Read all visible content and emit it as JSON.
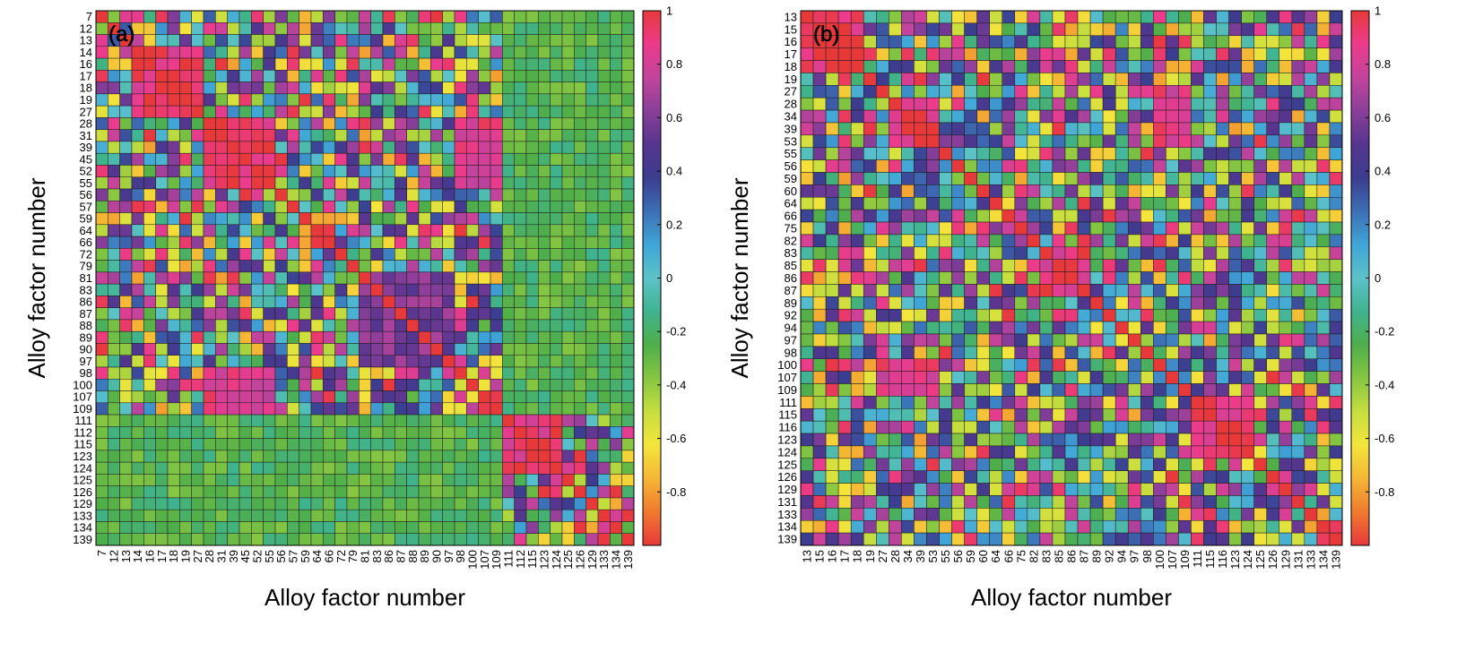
{
  "colorscale": [
    "#e8393a",
    "#f07a2e",
    "#f5b635",
    "#f4e53c",
    "#c6de3e",
    "#86c642",
    "#4fae4a",
    "#3fb38f",
    "#5cc3c9",
    "#3fa5d8",
    "#3d6fb6",
    "#3b3d8f",
    "#56358f",
    "#8a3f99",
    "#c2449c",
    "#ec3b8c",
    "#e8393a"
  ],
  "colorscale_range": [
    -1,
    1
  ],
  "chart_data": [
    {
      "type": "heatmap",
      "panel_label": "(a)",
      "xlabel": "Alloy factor number",
      "ylabel": "Alloy factor number",
      "labels": [
        "7",
        "12",
        "13",
        "14",
        "16",
        "17",
        "18",
        "19",
        "27",
        "28",
        "31",
        "39",
        "45",
        "52",
        "55",
        "56",
        "57",
        "59",
        "64",
        "66",
        "72",
        "79",
        "81",
        "83",
        "86",
        "87",
        "88",
        "89",
        "90",
        "97",
        "98",
        "100",
        "107",
        "109",
        "111",
        "112",
        "115",
        "123",
        "124",
        "125",
        "126",
        "129",
        "133",
        "134",
        "139"
      ],
      "colorbar": {
        "min": -1,
        "max": 1,
        "ticks": [
          1,
          0.8,
          0.6,
          0.4,
          0.2,
          0,
          -0.2,
          -0.4,
          -0.6,
          -0.8
        ],
        "tick_labels": [
          "1",
          "0.8",
          "0.6",
          "0.4",
          "0.2",
          "0",
          "-0.2",
          "-0.4",
          "-0.6",
          "-0.8"
        ]
      },
      "seed": 7,
      "blocks": [
        {
          "r0": 3,
          "r1": 8,
          "c0": 3,
          "c1": 8,
          "v": 0.92
        },
        {
          "r0": 9,
          "r1": 14,
          "c0": 9,
          "c1": 14,
          "v": 0.93
        },
        {
          "r0": 9,
          "r1": 14,
          "c0": 30,
          "c1": 33,
          "v": 0.85
        },
        {
          "r0": 30,
          "r1": 33,
          "c0": 9,
          "c1": 14,
          "v": 0.85
        },
        {
          "r0": 34,
          "r1": 38,
          "c0": 34,
          "c1": 38,
          "v": 0.9
        },
        {
          "r0": 34,
          "r1": 44,
          "c0": 0,
          "c1": 33,
          "v": -0.25
        },
        {
          "r0": 0,
          "r1": 33,
          "c0": 34,
          "c1": 44,
          "v": -0.25
        },
        {
          "r0": 22,
          "r1": 29,
          "c0": 22,
          "c1": 29,
          "v": 0.6
        }
      ]
    },
    {
      "type": "heatmap",
      "panel_label": "(b)",
      "xlabel": "Alloy factor number",
      "ylabel": "Alloy factor number",
      "labels": [
        "13",
        "15",
        "16",
        "17",
        "18",
        "19",
        "27",
        "28",
        "34",
        "39",
        "53",
        "55",
        "56",
        "59",
        "60",
        "64",
        "66",
        "75",
        "82",
        "83",
        "85",
        "86",
        "87",
        "89",
        "92",
        "94",
        "97",
        "98",
        "100",
        "107",
        "109",
        "111",
        "115",
        "116",
        "123",
        "124",
        "125",
        "126",
        "129",
        "131",
        "133",
        "134",
        "139"
      ],
      "colorbar": {
        "min": -1,
        "max": 1,
        "ticks": [
          1,
          0.8,
          0.6,
          0.4,
          0.2,
          0,
          -0.2,
          -0.4,
          -0.6,
          -0.8
        ],
        "tick_labels": [
          "1",
          "0.8",
          "0.6",
          "0.4",
          "0.2",
          "0",
          "-0.2",
          "-0.4",
          "-0.6",
          "-0.8"
        ]
      },
      "seed": 19,
      "blocks": [
        {
          "r0": 0,
          "r1": 4,
          "c0": 0,
          "c1": 4,
          "v": 0.92
        },
        {
          "r0": 7,
          "r1": 10,
          "c0": 7,
          "c1": 10,
          "v": 0.93
        },
        {
          "r0": 7,
          "r1": 10,
          "c0": 28,
          "c1": 30,
          "v": 0.85
        },
        {
          "r0": 28,
          "r1": 30,
          "c0": 7,
          "c1": 10,
          "v": 0.85
        },
        {
          "r0": 19,
          "r1": 22,
          "c0": 19,
          "c1": 22,
          "v": 0.9
        },
        {
          "r0": 31,
          "r1": 35,
          "c0": 31,
          "c1": 35,
          "v": 0.9
        }
      ]
    }
  ]
}
